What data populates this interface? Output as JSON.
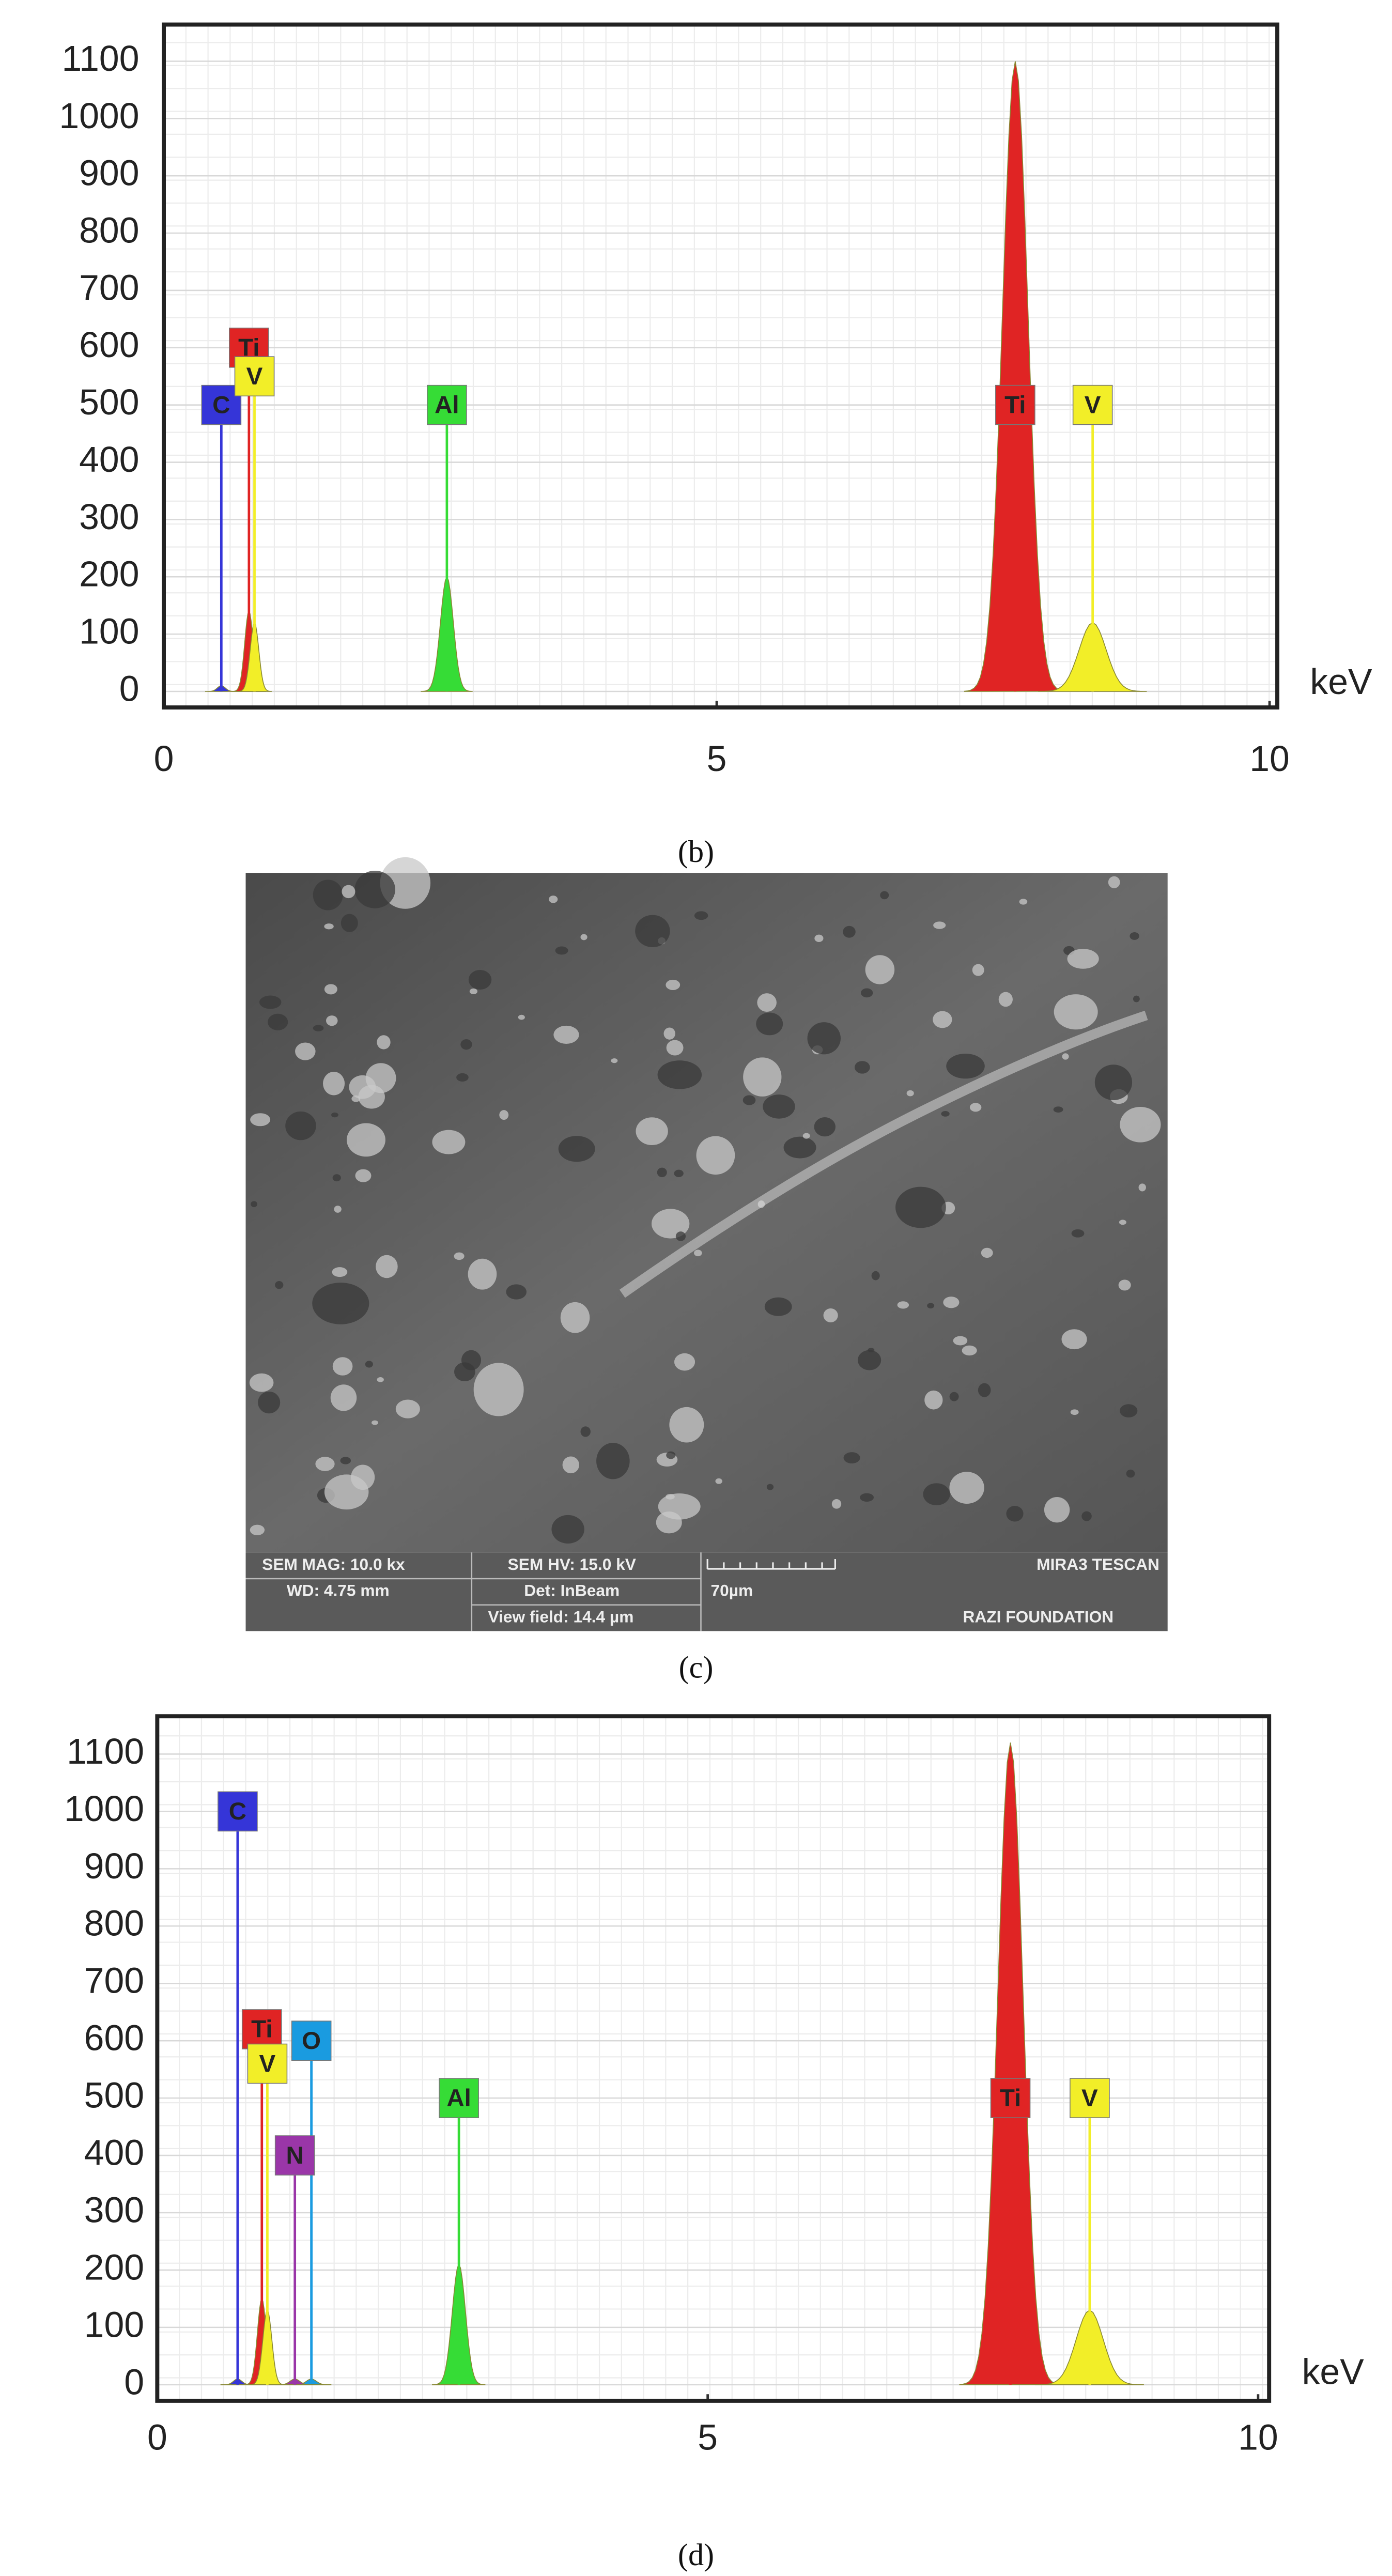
{
  "chart_data": [
    {
      "type": "spectrum",
      "x_label": "keV",
      "xlim": [
        0,
        10.07
      ],
      "ylim": [
        -28,
        1164
      ],
      "xticks": [
        0,
        5,
        10
      ],
      "yticks": [
        0,
        100,
        200,
        300,
        400,
        500,
        600,
        700,
        800,
        900,
        1000,
        1100
      ],
      "grid": true,
      "peaks": [
        {
          "name": "C",
          "x": 0.52,
          "value": 10,
          "color": "#3535d8"
        },
        {
          "name": "Ti",
          "x": 0.77,
          "value": 140,
          "color": "#e02424"
        },
        {
          "name": "V",
          "x": 0.82,
          "value": 120,
          "color": "#f2ee28"
        },
        {
          "name": "Al",
          "x": 2.56,
          "value": 200,
          "color": "#36dc36"
        },
        {
          "name": "Ti",
          "x": 7.7,
          "value": 1100,
          "color": "#e02424"
        },
        {
          "name": "V",
          "x": 8.4,
          "value": 120,
          "color": "#f2ee28"
        }
      ]
    },
    {
      "type": "spectrum",
      "x_label": "keV",
      "xlim": [
        0,
        10.1
      ],
      "ylim": [
        -28,
        1166
      ],
      "xticks": [
        0,
        5,
        10
      ],
      "yticks": [
        0,
        100,
        200,
        300,
        400,
        500,
        600,
        700,
        800,
        900,
        1000,
        1100
      ],
      "grid": true,
      "peaks": [
        {
          "name": "C",
          "x": 0.73,
          "value": 10,
          "color": "#3535d8"
        },
        {
          "name": "Ti",
          "x": 0.95,
          "value": 150,
          "color": "#e02424"
        },
        {
          "name": "V",
          "x": 1.0,
          "value": 130,
          "color": "#f2ee28"
        },
        {
          "name": "O",
          "x": 1.4,
          "value": 10,
          "color": "#1a9be0"
        },
        {
          "name": "N",
          "x": 1.25,
          "value": 10,
          "color": "#9a36a8"
        },
        {
          "name": "Al",
          "x": 2.74,
          "value": 210,
          "color": "#36dc36"
        },
        {
          "name": "Ti",
          "x": 7.75,
          "value": 1120,
          "color": "#e02424"
        },
        {
          "name": "V",
          "x": 8.47,
          "value": 130,
          "color": "#f2ee28"
        }
      ]
    }
  ],
  "captions": [
    "(b)",
    "(c)",
    "(d)"
  ],
  "sem_info": {
    "mag": "SEM MAG: 10.0 kx",
    "hv": "SEM HV: 15.0 kV",
    "wd": "WD: 4.75 mm",
    "det": "Det: InBeam",
    "view": "View field: 14.4 µm",
    "scale": "70µm",
    "brand": "MIRA3 TESCAN",
    "lab": "RAZI FOUNDATION"
  }
}
